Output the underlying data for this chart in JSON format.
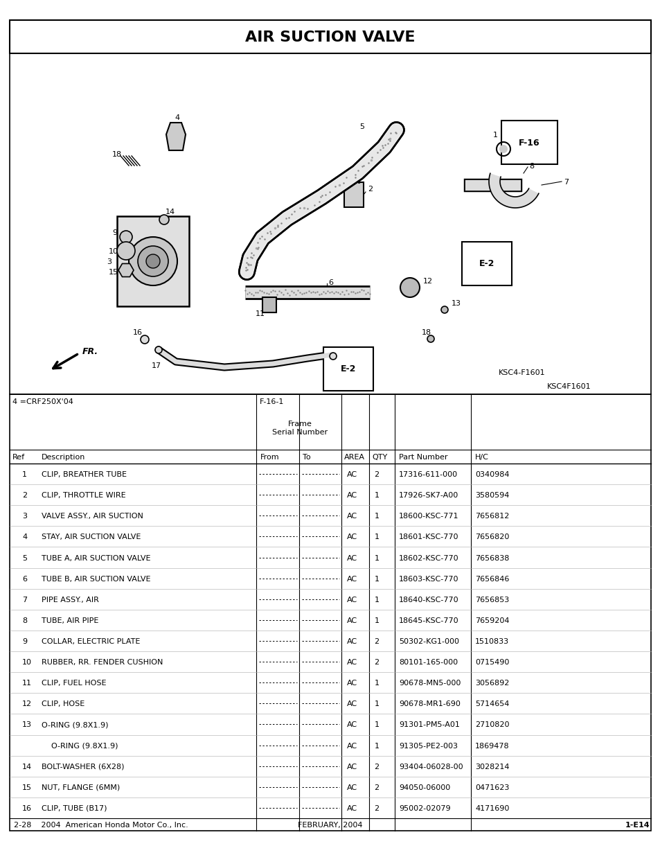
{
  "title": "AIR SUCTION VALVE",
  "diagram_code1": "KSC4-F1601",
  "diagram_code2": "KSC4F1601",
  "note_4": "4 =CRF250X'04",
  "note_f16": "F-16-1",
  "frame_serial": "Frame\nSerial Number",
  "parts": [
    {
      "ref": "1",
      "desc": "CLIP, BREATHER TUBE",
      "area": "AC",
      "qty": "2",
      "part": "17316-611-000",
      "hc": "0340984"
    },
    {
      "ref": "2",
      "desc": "CLIP, THROTTLE WIRE",
      "area": "AC",
      "qty": "1",
      "part": "17926-SK7-A00",
      "hc": "3580594"
    },
    {
      "ref": "3",
      "desc": "VALVE ASSY., AIR SUCTION",
      "area": "AC",
      "qty": "1",
      "part": "18600-KSC-771",
      "hc": "7656812"
    },
    {
      "ref": "4",
      "desc": "STAY, AIR SUCTION VALVE",
      "area": "AC",
      "qty": "1",
      "part": "18601-KSC-770",
      "hc": "7656820"
    },
    {
      "ref": "5",
      "desc": "TUBE A, AIR SUCTION VALVE",
      "area": "AC",
      "qty": "1",
      "part": "18602-KSC-770",
      "hc": "7656838"
    },
    {
      "ref": "6",
      "desc": "TUBE B, AIR SUCTION VALVE",
      "area": "AC",
      "qty": "1",
      "part": "18603-KSC-770",
      "hc": "7656846"
    },
    {
      "ref": "7",
      "desc": "PIPE ASSY., AIR",
      "area": "AC",
      "qty": "1",
      "part": "18640-KSC-770",
      "hc": "7656853"
    },
    {
      "ref": "8",
      "desc": "TUBE, AIR PIPE",
      "area": "AC",
      "qty": "1",
      "part": "18645-KSC-770",
      "hc": "7659204"
    },
    {
      "ref": "9",
      "desc": "COLLAR, ELECTRIC PLATE",
      "area": "AC",
      "qty": "2",
      "part": "50302-KG1-000",
      "hc": "1510833"
    },
    {
      "ref": "10",
      "desc": "RUBBER, RR. FENDER CUSHION",
      "area": "AC",
      "qty": "2",
      "part": "80101-165-000",
      "hc": "0715490"
    },
    {
      "ref": "11",
      "desc": "CLIP, FUEL HOSE",
      "area": "AC",
      "qty": "1",
      "part": "90678-MN5-000",
      "hc": "3056892"
    },
    {
      "ref": "12",
      "desc": "CLIP, HOSE",
      "area": "AC",
      "qty": "1",
      "part": "90678-MR1-690",
      "hc": "5714654"
    },
    {
      "ref": "13",
      "desc": "O-RING (9.8X1.9)",
      "area": "AC",
      "qty": "1",
      "part": "91301-PM5-A01",
      "hc": "2710820"
    },
    {
      "ref": "",
      "desc": "O-RING (9.8X1.9)",
      "area": "AC",
      "qty": "1",
      "part": "91305-PE2-003",
      "hc": "1869478"
    },
    {
      "ref": "14",
      "desc": "BOLT-WASHER (6X28)",
      "area": "AC",
      "qty": "2",
      "part": "93404-06028-00",
      "hc": "3028214"
    },
    {
      "ref": "15",
      "desc": "NUT, FLANGE (6MM)",
      "area": "AC",
      "qty": "2",
      "part": "94050-06000",
      "hc": "0471623"
    },
    {
      "ref": "16",
      "desc": "CLIP, TUBE (B17)",
      "area": "AC",
      "qty": "2",
      "part": "95002-02079",
      "hc": "4171690"
    }
  ],
  "footer_left": "2-28    2004  American Honda Motor Co., Inc.",
  "footer_center": "FEBRUARY, 2004",
  "footer_right": "1-E14"
}
